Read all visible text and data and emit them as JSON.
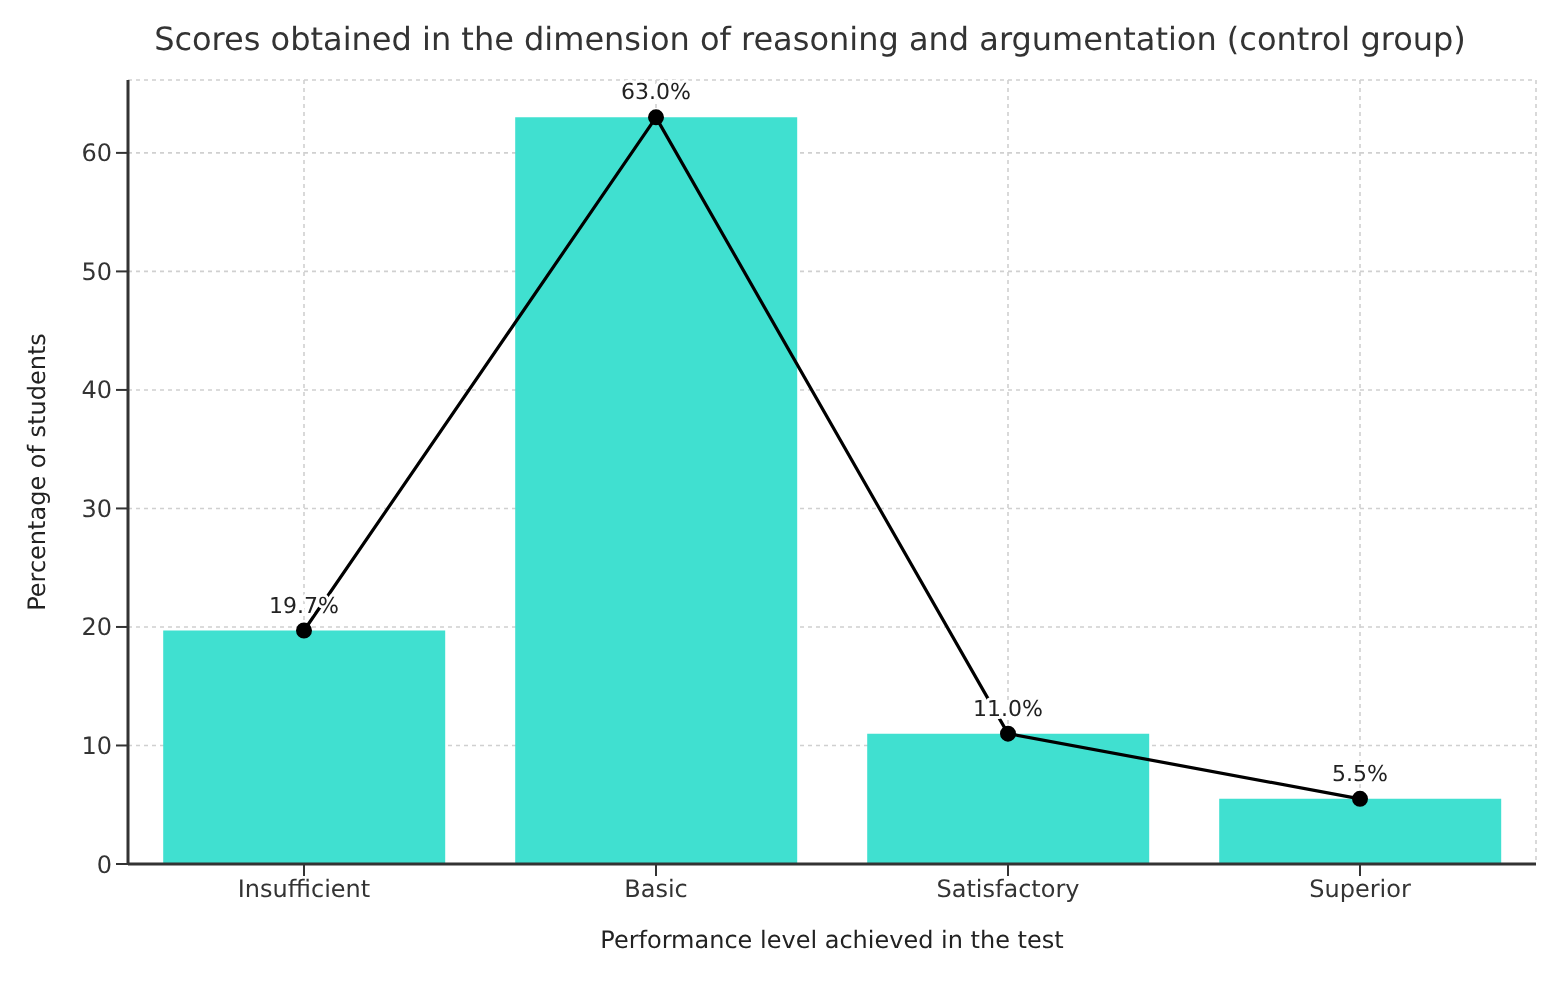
{
  "chart_data": {
    "type": "bar",
    "title": "Scores obtained in the dimension of reasoning and argumentation (control group)",
    "xlabel": "Performance level achieved in the test",
    "ylabel": "Percentage of students",
    "categories": [
      "Insufficient",
      "Basic",
      "Satisfactory",
      "Superior"
    ],
    "series": [
      {
        "color": "#40e0d0",
        "values": [
          19.7,
          63.0,
          11.0,
          5.5
        ]
      },
      {
        "type": "line",
        "color": "#000000",
        "values": [
          19.7,
          63.0,
          11.0,
          5.5
        ],
        "value_labels": [
          "19.7%",
          "63.0%",
          "11.0%",
          "5.5%"
        ]
      }
    ],
    "ylim": [
      0,
      66.15
    ],
    "yticks": [
      0,
      10,
      20,
      30,
      40,
      50,
      60
    ],
    "grid": true,
    "marker": "circle",
    "line_style": "solid"
  }
}
